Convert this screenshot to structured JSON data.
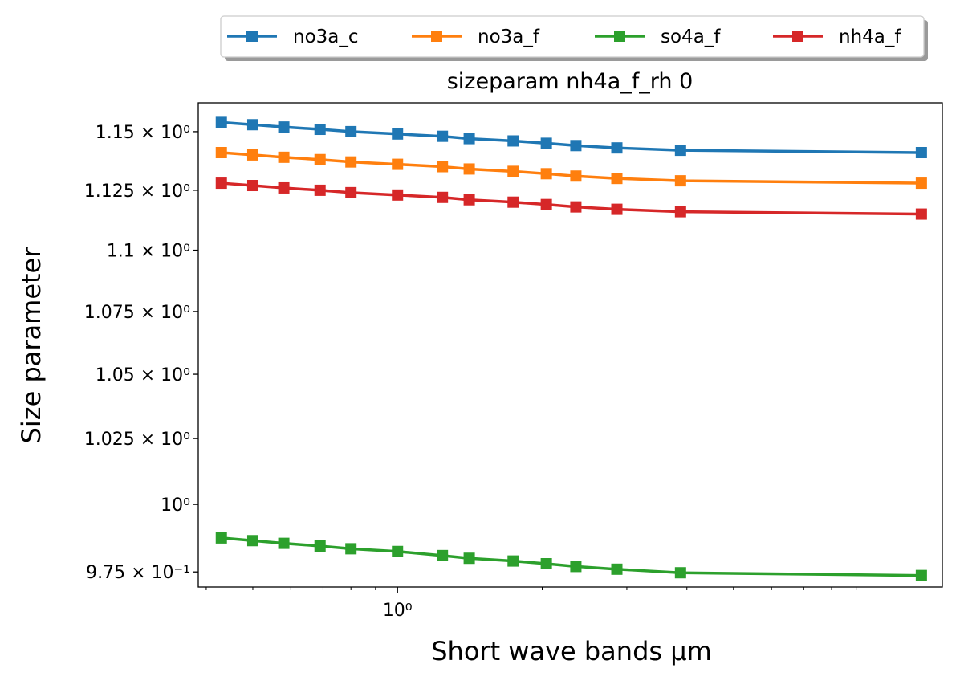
{
  "chart_data": {
    "type": "line",
    "title": "sizeparam nh4a_f_rh 0",
    "xlabel": "Short wave bands μm",
    "ylabel": "Size parameter",
    "x_scale": "log",
    "y_scale": "log",
    "x_tick_labels": [
      "10⁰"
    ],
    "y_tick_labels": [
      "1.15 × 10⁰",
      "1.125 × 10⁰",
      "1.1 × 10⁰",
      "1.075 × 10⁰",
      "1.05 × 10⁰",
      "1.025 × 10⁰",
      "10⁰",
      "9.75 × 10⁻¹"
    ],
    "y_ticks": [
      1.15,
      1.125,
      1.1,
      1.075,
      1.05,
      1.025,
      1.0,
      0.975
    ],
    "x": [
      0.43,
      0.5,
      0.58,
      0.69,
      0.8,
      1.0,
      1.24,
      1.41,
      1.74,
      2.04,
      2.35,
      2.86,
      3.88,
      12.3
    ],
    "xlim": [
      0.385,
      13.6
    ],
    "ylim": [
      0.9695,
      1.1625
    ],
    "legend_position": "above plot, horizontal, with shadow",
    "series": [
      {
        "name": "no3a_c",
        "color": "#1f77b4",
        "values": [
          1.154,
          1.153,
          1.152,
          1.151,
          1.15,
          1.149,
          1.148,
          1.147,
          1.146,
          1.145,
          1.144,
          1.143,
          1.142,
          1.141
        ]
      },
      {
        "name": "no3a_f",
        "color": "#ff7f0e",
        "values": [
          1.141,
          1.14,
          1.139,
          1.138,
          1.137,
          1.136,
          1.135,
          1.134,
          1.133,
          1.132,
          1.131,
          1.13,
          1.129,
          1.128
        ]
      },
      {
        "name": "so4a_f",
        "color": "#2ca02c",
        "values": [
          0.9875,
          0.9865,
          0.9855,
          0.9845,
          0.9835,
          0.9825,
          0.981,
          0.98,
          0.979,
          0.978,
          0.977,
          0.976,
          0.9747,
          0.9737
        ]
      },
      {
        "name": "nh4a_f",
        "color": "#d62728",
        "values": [
          1.128,
          1.127,
          1.126,
          1.125,
          1.124,
          1.123,
          1.122,
          1.121,
          1.12,
          1.119,
          1.118,
          1.117,
          1.116,
          1.115
        ]
      }
    ]
  }
}
